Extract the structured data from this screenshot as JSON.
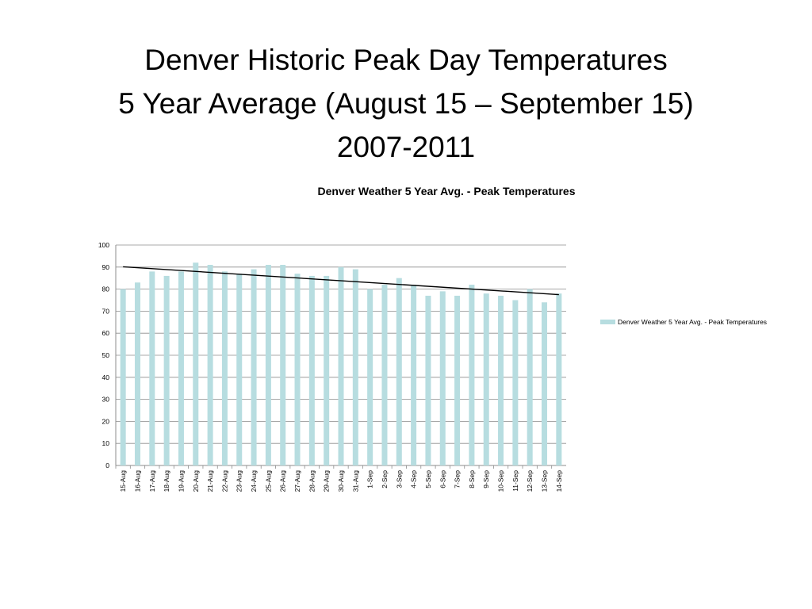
{
  "slide": {
    "title_lines": [
      "Denver Historic Peak Day Temperatures",
      "5 Year Average (August 15 – September 15)",
      "2007-2011"
    ]
  },
  "chart_data": {
    "type": "bar",
    "title": "Denver Weather 5 Year Avg. - Peak Temperatures",
    "xlabel": "",
    "ylabel": "",
    "ylim": [
      0,
      100
    ],
    "yticks": [
      0,
      10,
      20,
      30,
      40,
      50,
      60,
      70,
      80,
      90,
      100
    ],
    "grid": true,
    "legend_position": "right",
    "bar_color": "#b7dde0",
    "trendline": {
      "type": "linear",
      "color": "#000000"
    },
    "categories": [
      "15-Aug",
      "16-Aug",
      "17-Aug",
      "18-Aug",
      "19-Aug",
      "20-Aug",
      "21-Aug",
      "22-Aug",
      "23-Aug",
      "24-Aug",
      "25-Aug",
      "26-Aug",
      "27-Aug",
      "28-Aug",
      "29-Aug",
      "30-Aug",
      "31-Aug",
      "1-Sep",
      "2-Sep",
      "3-Sep",
      "4-Sep",
      "5-Sep",
      "6-Sep",
      "7-Sep",
      "8-Sep",
      "9-Sep",
      "10-Sep",
      "11-Sep",
      "12-Sep",
      "13-Sep",
      "14-Sep"
    ],
    "series": [
      {
        "name": "Denver Weather 5 Year Avg. - Peak Temperatures",
        "values": [
          80,
          83,
          88,
          86,
          88,
          92,
          91,
          88,
          87,
          89,
          91,
          91,
          87,
          86,
          86,
          90,
          89,
          80,
          82,
          85,
          82,
          77,
          79,
          77,
          82,
          78,
          77,
          75,
          80,
          74,
          78
        ]
      }
    ]
  }
}
